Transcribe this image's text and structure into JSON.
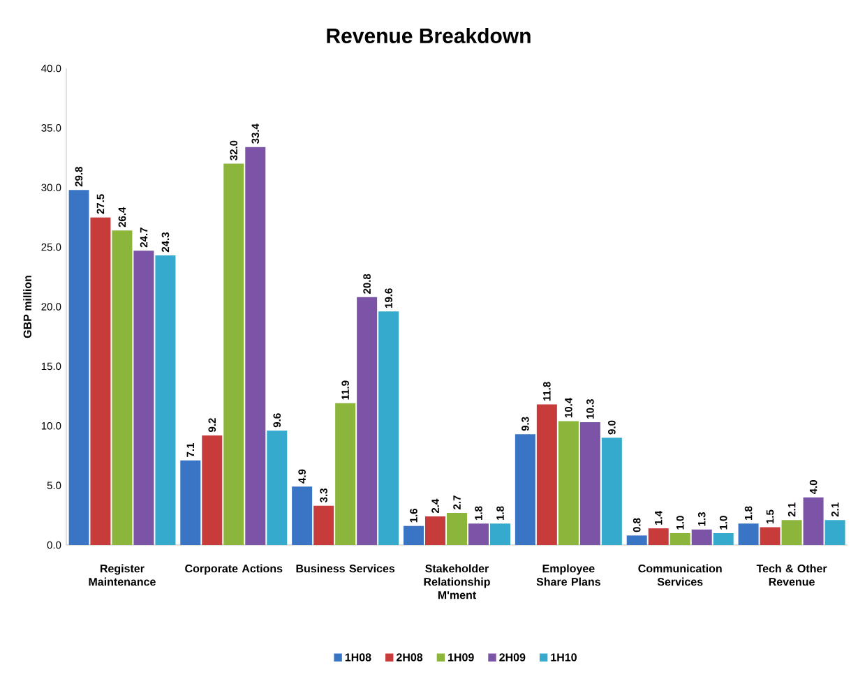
{
  "chart_data": {
    "type": "bar",
    "title": "Revenue Breakdown",
    "ylabel": "GBP million",
    "categories": [
      "Register Maintenance",
      "Corporate Actions",
      "Business Services",
      "Stakeholder Relationship M'ment",
      "Employee Share Plans",
      "Communication Services",
      "Tech & Other Revenue"
    ],
    "series": [
      {
        "name": "1H08",
        "color": "#3a74c4",
        "values": [
          29.8,
          7.1,
          4.9,
          1.6,
          9.3,
          0.8,
          1.8
        ],
        "value_labels": [
          "29.8",
          "7.1",
          "4.9",
          "1.6",
          "9.3",
          "0.8",
          "1.8"
        ]
      },
      {
        "name": "2H08",
        "color": "#c83b3b",
        "values": [
          27.5,
          9.2,
          3.3,
          2.4,
          11.8,
          1.4,
          1.5
        ],
        "value_labels": [
          "27.5",
          "9.2",
          "3.3",
          "2.4",
          "11.8",
          "1.4",
          "1.5"
        ]
      },
      {
        "name": "1H09",
        "color": "#8cb53c",
        "values": [
          26.4,
          32.0,
          11.9,
          2.7,
          10.4,
          1.0,
          2.1
        ],
        "value_labels": [
          "26.4",
          "32.0",
          "11.9",
          "2.7",
          "10.4",
          "1.0",
          "2.1"
        ]
      },
      {
        "name": "2H09",
        "color": "#7b53a7",
        "values": [
          24.7,
          33.4,
          20.8,
          1.8,
          10.3,
          1.3,
          4.0
        ],
        "value_labels": [
          "24.7",
          "33.4",
          "20.8",
          "1.8",
          "10.3",
          "1.3",
          "4.0"
        ]
      },
      {
        "name": "1H10",
        "color": "#35aacd",
        "values": [
          24.3,
          9.6,
          19.6,
          1.8,
          9.0,
          1.0,
          2.1
        ],
        "value_labels": [
          "24.3",
          "9.6",
          "19.6",
          "1.8",
          "9.0",
          "1.0",
          "2.1"
        ]
      }
    ],
    "ylim": [
      0,
      40
    ],
    "yticks": [
      {
        "value": 0,
        "label": "0.0"
      },
      {
        "value": 5,
        "label": "5.0"
      },
      {
        "value": 10,
        "label": "10.0"
      },
      {
        "value": 15,
        "label": "15.0"
      },
      {
        "value": 20,
        "label": "20.0"
      },
      {
        "value": 25,
        "label": "25.0"
      },
      {
        "value": 30,
        "label": "30.0"
      },
      {
        "value": 35,
        "label": "35.0"
      },
      {
        "value": 40,
        "label": "40.0"
      }
    ],
    "legend": "bottom",
    "grid": false
  }
}
